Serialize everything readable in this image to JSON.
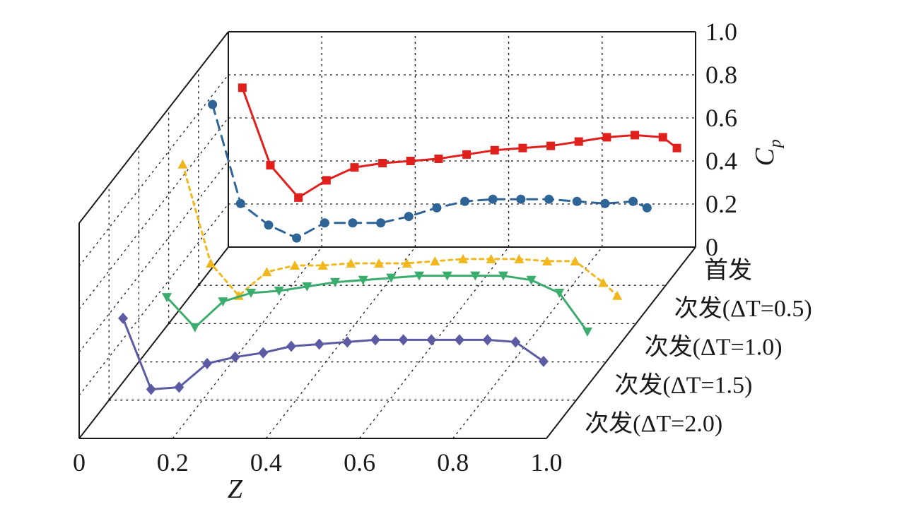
{
  "chart_data": {
    "type": "line",
    "xlabel": "Z",
    "zlabel_main": "C",
    "zlabel_sub": "p",
    "xlim": [
      0,
      1.0
    ],
    "zlim": [
      0,
      1.0
    ],
    "x_ticks": [
      "0",
      "0.2",
      "0.4",
      "0.6",
      "0.8",
      "1.0"
    ],
    "z_ticks": [
      "0",
      "0.2",
      "0.4",
      "0.6",
      "0.8",
      "1.0"
    ],
    "categories": [
      "首发",
      "次发(ΔT=0.5)",
      "次发(ΔT=1.0)",
      "次发(ΔT=1.5)",
      "次发(ΔT=2.0)"
    ],
    "series": [
      {
        "name": "首发",
        "color": "#e0201c",
        "marker": "square",
        "dash": "solid",
        "x": [
          0.03,
          0.09,
          0.15,
          0.21,
          0.27,
          0.33,
          0.39,
          0.45,
          0.51,
          0.57,
          0.63,
          0.69,
          0.75,
          0.81,
          0.87,
          0.93,
          0.96
        ],
        "values": [
          0.74,
          0.38,
          0.23,
          0.31,
          0.37,
          0.39,
          0.4,
          0.41,
          0.43,
          0.45,
          0.46,
          0.47,
          0.49,
          0.51,
          0.52,
          0.51,
          0.46
        ]
      },
      {
        "name": "次发(ΔT=0.5)",
        "color": "#2e6496",
        "marker": "circle",
        "dash": "dashed",
        "x": [
          0.03,
          0.09,
          0.15,
          0.21,
          0.27,
          0.33,
          0.39,
          0.45,
          0.51,
          0.57,
          0.63,
          0.69,
          0.75,
          0.81,
          0.87,
          0.93,
          0.96
        ],
        "values": [
          0.84,
          0.38,
          0.28,
          0.22,
          0.29,
          0.29,
          0.29,
          0.32,
          0.36,
          0.39,
          0.4,
          0.4,
          0.4,
          0.39,
          0.38,
          0.39,
          0.36
        ]
      },
      {
        "name": "次发(ΔT=1.0)",
        "color": "#f2b71c",
        "marker": "triangle-up",
        "dash": "dotted",
        "x": [
          0.03,
          0.09,
          0.15,
          0.21,
          0.27,
          0.33,
          0.39,
          0.45,
          0.51,
          0.57,
          0.63,
          0.69,
          0.75,
          0.81,
          0.87,
          0.93,
          0.96
        ],
        "values": [
          0.74,
          0.28,
          0.13,
          0.24,
          0.27,
          0.27,
          0.28,
          0.28,
          0.28,
          0.29,
          0.3,
          0.3,
          0.3,
          0.29,
          0.29,
          0.19,
          0.13
        ]
      },
      {
        "name": "次发(ΔT=1.5)",
        "color": "#3aac6e",
        "marker": "triangle-down",
        "dash": "solid",
        "x": [
          0.06,
          0.12,
          0.18,
          0.24,
          0.3,
          0.36,
          0.42,
          0.48,
          0.54,
          0.6,
          0.66,
          0.72,
          0.78,
          0.84,
          0.9,
          0.96
        ],
        "values": [
          0.3,
          0.16,
          0.28,
          0.32,
          0.33,
          0.35,
          0.37,
          0.38,
          0.39,
          0.4,
          0.4,
          0.4,
          0.4,
          0.38,
          0.32,
          0.14
        ]
      },
      {
        "name": "次发(ΔT=2.0)",
        "color": "#5c5aa3",
        "marker": "diamond",
        "dash": "solid",
        "x": [
          0.03,
          0.09,
          0.15,
          0.21,
          0.27,
          0.33,
          0.39,
          0.45,
          0.51,
          0.57,
          0.63,
          0.69,
          0.75,
          0.81,
          0.87,
          0.93
        ],
        "values": [
          0.38,
          0.05,
          0.06,
          0.17,
          0.2,
          0.22,
          0.25,
          0.26,
          0.27,
          0.28,
          0.28,
          0.28,
          0.28,
          0.28,
          0.27,
          0.18
        ]
      }
    ]
  }
}
